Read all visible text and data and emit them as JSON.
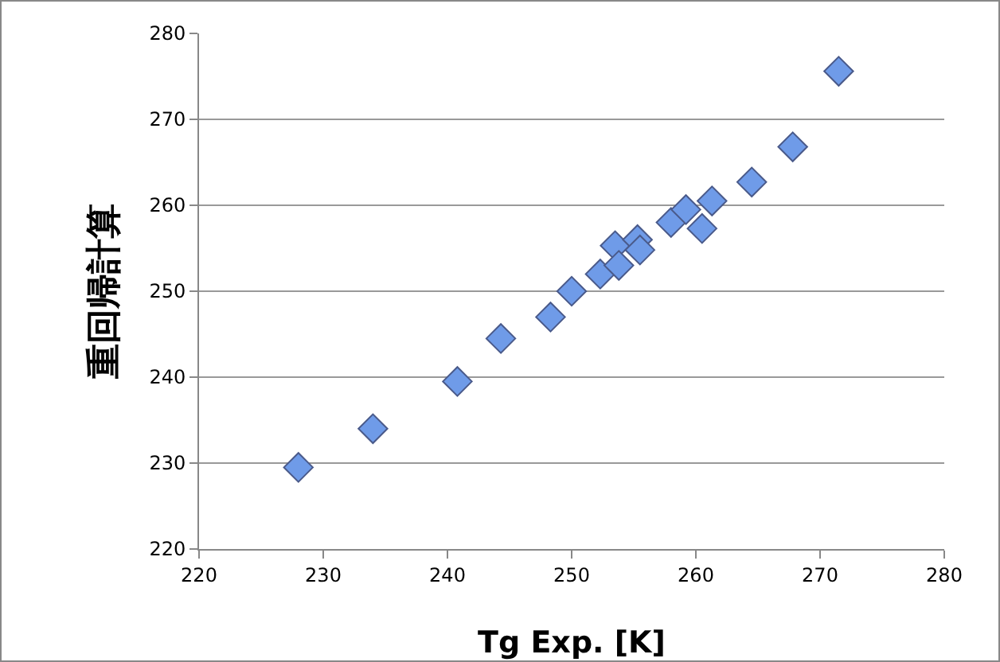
{
  "chart_data": {
    "type": "scatter",
    "xlabel": "Tg Exp. [K]",
    "ylabel": "重回帰計算",
    "x": [
      228,
      234,
      240.8,
      244.3,
      248.3,
      250,
      252.3,
      253.5,
      253.8,
      255.3,
      255.5,
      258,
      259.2,
      260.5,
      261.3,
      264.5,
      267.8,
      271.5
    ],
    "values": [
      229.5,
      234,
      239.5,
      244.5,
      247,
      250,
      252,
      255.3,
      253,
      256,
      254.8,
      258,
      259.5,
      257.3,
      260.5,
      262.7,
      266.8,
      275.6
    ],
    "color": "#6f9be8",
    "marker": "diamond",
    "xlim": [
      220,
      280
    ],
    "xticks": [
      220,
      230,
      240,
      250,
      260,
      270,
      280
    ],
    "ylim": [
      220,
      280
    ],
    "yticks": [
      220,
      230,
      240,
      250,
      260,
      270,
      280
    ],
    "grid": "y",
    "legend": false
  }
}
